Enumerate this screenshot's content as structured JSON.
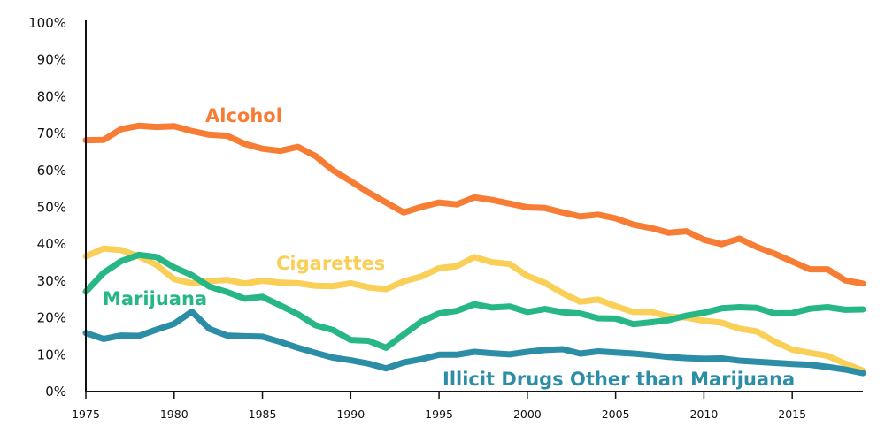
{
  "chart_data": {
    "type": "line",
    "title": "",
    "xlabel": "",
    "ylabel": "",
    "xlim": [
      1975,
      2019
    ],
    "ylim": [
      0,
      100
    ],
    "x_ticks": [
      1975,
      1980,
      1985,
      1990,
      1995,
      2000,
      2005,
      2010,
      2015
    ],
    "x_tick_labels": [
      "1975",
      "1980",
      "1985",
      "1990",
      "1995",
      "2000",
      "2005",
      "2010",
      "2015"
    ],
    "y_ticks": [
      0,
      10,
      20,
      30,
      40,
      50,
      60,
      70,
      80,
      90,
      100
    ],
    "y_tick_labels": [
      "0%",
      "10%",
      "20%",
      "30%",
      "40%",
      "50%",
      "60%",
      "70%",
      "80%",
      "90%",
      "100%"
    ],
    "grid": false,
    "legend": "inline labels",
    "x": [
      1975,
      1976,
      1977,
      1978,
      1979,
      1980,
      1981,
      1982,
      1983,
      1984,
      1985,
      1986,
      1987,
      1988,
      1989,
      1990,
      1991,
      1992,
      1993,
      1994,
      1995,
      1996,
      1997,
      1998,
      1999,
      2000,
      2001,
      2002,
      2003,
      2004,
      2005,
      2006,
      2007,
      2008,
      2009,
      2010,
      2011,
      2012,
      2013,
      2014,
      2015,
      2016,
      2017,
      2018,
      2019
    ],
    "series": [
      {
        "name": "Alcohol",
        "color": "#F77D35",
        "values": [
          68.2,
          68.3,
          71.2,
          72.1,
          71.8,
          72.0,
          70.7,
          69.7,
          69.4,
          67.2,
          65.9,
          65.3,
          66.4,
          63.9,
          60.0,
          57.1,
          54.0,
          51.3,
          48.6,
          50.1,
          51.3,
          50.8,
          52.7,
          52.0,
          51.0,
          50.0,
          49.8,
          48.6,
          47.5,
          48.0,
          47.0,
          45.3,
          44.4,
          43.1,
          43.5,
          41.2,
          40.0,
          41.5,
          39.2,
          37.4,
          35.3,
          33.2,
          33.2,
          30.2,
          29.3
        ]
      },
      {
        "name": "Cigarettes",
        "color": "#F9CF57",
        "values": [
          36.7,
          38.8,
          38.4,
          36.7,
          34.4,
          30.5,
          29.4,
          30.0,
          30.3,
          29.3,
          30.1,
          29.6,
          29.4,
          28.7,
          28.6,
          29.4,
          28.3,
          27.8,
          29.9,
          31.2,
          33.5,
          34.0,
          36.5,
          35.1,
          34.6,
          31.4,
          29.5,
          26.7,
          24.4,
          25.0,
          23.2,
          21.6,
          21.6,
          20.4,
          20.1,
          19.2,
          18.7,
          17.1,
          16.3,
          13.6,
          11.4,
          10.5,
          9.7,
          7.6,
          5.7
        ]
      },
      {
        "name": "Marijuana",
        "color": "#27B686",
        "values": [
          27.1,
          32.2,
          35.4,
          37.1,
          36.5,
          33.7,
          31.6,
          28.5,
          27.0,
          25.2,
          25.7,
          23.4,
          21.0,
          18.0,
          16.7,
          14.0,
          13.8,
          11.9,
          15.5,
          19.0,
          21.2,
          21.9,
          23.7,
          22.8,
          23.1,
          21.6,
          22.4,
          21.5,
          21.2,
          19.9,
          19.8,
          18.3,
          18.8,
          19.4,
          20.6,
          21.4,
          22.6,
          22.9,
          22.7,
          21.2,
          21.3,
          22.5,
          22.9,
          22.2,
          22.3
        ]
      },
      {
        "name": "Illicit Drugs Other than Marijuana",
        "color": "#2B8DA6",
        "values": [
          15.9,
          14.3,
          15.2,
          15.1,
          16.8,
          18.4,
          21.7,
          17.0,
          15.2,
          15.0,
          14.9,
          13.5,
          11.9,
          10.5,
          9.2,
          8.5,
          7.6,
          6.3,
          7.9,
          8.8,
          10.0,
          10.0,
          10.8,
          10.4,
          10.1,
          10.8,
          11.3,
          11.5,
          10.3,
          10.9,
          10.6,
          10.3,
          9.9,
          9.4,
          9.1,
          8.9,
          9.0,
          8.4,
          8.1,
          7.8,
          7.5,
          7.3,
          6.7,
          6.0,
          5.0
        ]
      }
    ]
  }
}
